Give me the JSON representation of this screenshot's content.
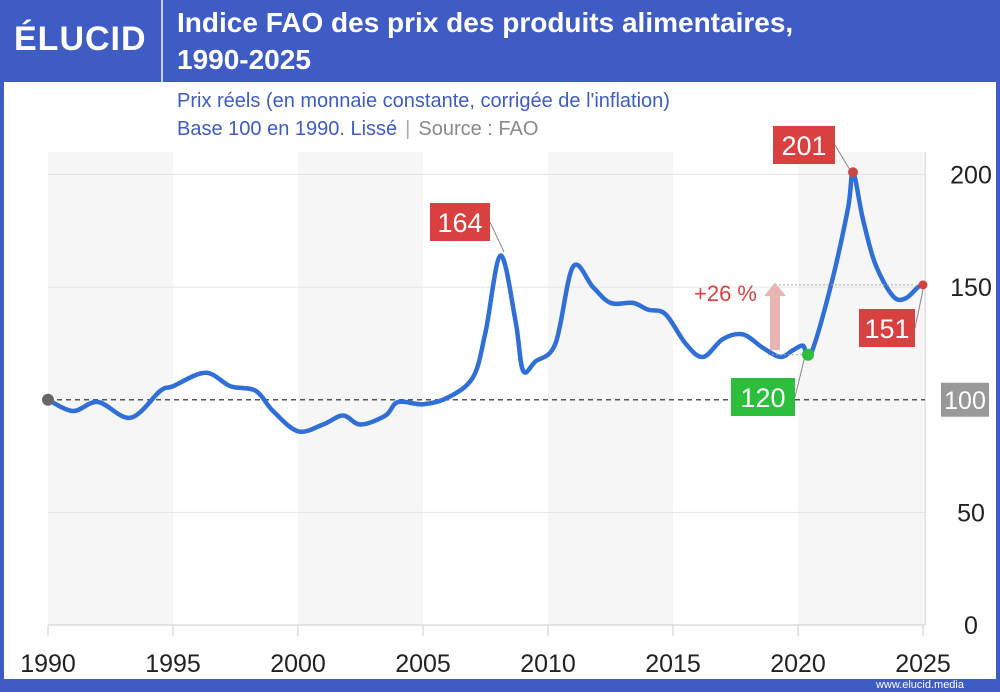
{
  "header": {
    "logo": "ÉLUCID",
    "title_line1": "Indice FAO des prix des produits alimentaires,",
    "title_line2": "1990-2025"
  },
  "subtitle": {
    "line1": "Prix réels (en monnaie constante, corrigée de l'inflation)",
    "line2": "Base 100 en 1990. Lissé",
    "source": "Source : FAO"
  },
  "footer": {
    "url": "www.elucid.media"
  },
  "colors": {
    "brand": "#3f5bc4",
    "line": "#2f6fd6",
    "peak": "#d94040",
    "low": "#2cbf3c",
    "base": "#999999"
  },
  "chart_data": {
    "type": "line",
    "title": "Indice FAO des prix des produits alimentaires, 1990-2025",
    "xlim": [
      1990,
      2025
    ],
    "ylim": [
      0,
      200
    ],
    "x_ticks": [
      "1990",
      "1995",
      "2000",
      "2005",
      "2010",
      "2015",
      "2020",
      "2025"
    ],
    "y_ticks": [
      "0",
      "50",
      "100",
      "150",
      "200"
    ],
    "y_axis_position": "right",
    "grid": true,
    "series": [
      {
        "x": [
          1990,
          1991,
          1992,
          1993.3,
          1994.5,
          1995,
          1996.3,
          1997.3,
          1998.3,
          1999,
          2000,
          2001,
          2001.8,
          2002.5,
          2003.5,
          2004,
          2005,
          2006,
          2007,
          2007.5,
          2008.1,
          2008.7,
          2009,
          2009.5,
          2010.3,
          2011,
          2011.8,
          2012.5,
          2013.4,
          2014,
          2014.7,
          2015.5,
          2016.2,
          2017,
          2017.8,
          2018.6,
          2019.3,
          2019.8,
          2020.2,
          2020.5,
          2021.3,
          2022,
          2022.2,
          2022.6,
          2023.1,
          2023.8,
          2024.3,
          2024.8,
          2025
        ],
        "y": [
          100,
          95,
          99,
          92,
          104,
          106,
          112,
          106,
          104,
          95,
          86,
          89,
          93,
          89,
          93,
          99,
          98,
          101,
          110,
          130,
          164,
          135,
          113,
          117,
          125,
          159,
          150,
          143,
          143,
          140,
          138,
          125,
          119,
          127,
          129,
          123,
          119,
          122,
          124,
          120,
          150,
          185,
          201,
          180,
          160,
          146,
          145,
          150,
          151
        ]
      }
    ],
    "annotations": {
      "baseline": "100",
      "peak_2008": "164",
      "peak_2022": "201",
      "low_2020": "120",
      "last_2025": "151",
      "change": "+26 %"
    }
  }
}
